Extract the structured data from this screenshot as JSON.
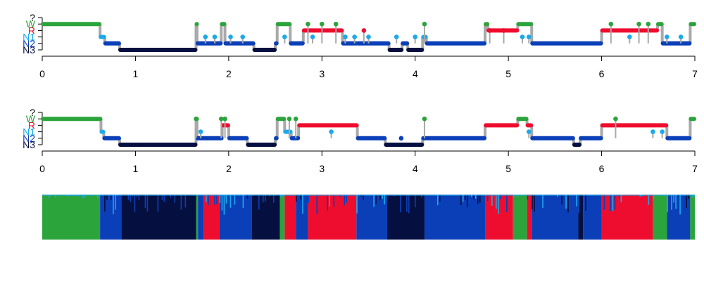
{
  "chart_data": [
    {
      "type": "scatter",
      "title": "",
      "xlabel": "",
      "ylabel": "",
      "xlim": [
        0,
        7
      ],
      "x_ticks": [
        "0",
        "1",
        "2",
        "3",
        "4",
        "5",
        "6",
        "7"
      ],
      "stage_order": [
        "?",
        "W",
        "R",
        "N1",
        "N2",
        "N3"
      ],
      "stage_colors": {
        "?": "#2ca43c",
        "W": "#2ca43c",
        "R": "#ee0d2f",
        "N1": "#1ca9ea",
        "N2": "#0a3fb8",
        "N3": "#061040"
      },
      "label_colors": {
        "?": "#000000",
        "W": "#2ca43c",
        "R": "#ee0d2f",
        "N1": "#1ca9ea",
        "N2": "#0a3fb8",
        "N3": "#061040"
      },
      "segments": [
        [
          "W",
          0,
          0.62
        ],
        [
          "N1",
          0.62,
          0.67
        ],
        [
          "N2",
          0.67,
          0.83
        ],
        [
          "N3",
          0.83,
          1.65
        ],
        [
          "W",
          1.65,
          1.66
        ],
        [
          "N2",
          1.66,
          1.92
        ],
        [
          "W",
          1.92,
          1.96
        ],
        [
          "N2",
          1.96,
          2.27
        ],
        [
          "N3",
          2.27,
          2.5
        ],
        [
          "N2",
          2.5,
          2.52
        ],
        [
          "W",
          2.52,
          2.66
        ],
        [
          "N2",
          2.66,
          2.8
        ],
        [
          "R",
          2.8,
          3.22
        ],
        [
          "N2",
          3.22,
          3.38
        ],
        [
          "N2",
          3.38,
          3.72
        ],
        [
          "N3",
          3.72,
          3.86
        ],
        [
          "N2",
          3.86,
          3.92
        ],
        [
          "N3",
          3.92,
          4.08
        ],
        [
          "N1",
          4.08,
          4.12
        ],
        [
          "N2",
          4.12,
          4.75
        ],
        [
          "W",
          4.75,
          4.78
        ],
        [
          "R",
          4.78,
          5.1
        ],
        [
          "W",
          5.1,
          5.25
        ],
        [
          "N2",
          5.25,
          6
        ],
        [
          "R",
          6,
          6.6
        ],
        [
          "W",
          6.6,
          6.65
        ],
        [
          "N2",
          6.65,
          6.95
        ],
        [
          "W",
          6.95,
          7
        ]
      ],
      "scattered_points": [
        [
          "N1",
          1.75
        ],
        [
          "N1",
          1.85
        ],
        [
          "N1",
          2.02
        ],
        [
          "N1",
          2.15
        ],
        [
          "N1",
          2.6
        ],
        [
          "N1",
          2.9
        ],
        [
          "W",
          2.85
        ],
        [
          "W",
          3.0
        ],
        [
          "W",
          3.15
        ],
        [
          "N1",
          3.25
        ],
        [
          "N1",
          3.35
        ],
        [
          "R",
          3.45
        ],
        [
          "N1",
          3.5
        ],
        [
          "N1",
          3.8
        ],
        [
          "N1",
          4.0
        ],
        [
          "W",
          4.1
        ],
        [
          "R",
          4.8
        ],
        [
          "R",
          4.95
        ],
        [
          "N1",
          5.15
        ],
        [
          "N1",
          5.22
        ],
        [
          "W",
          6.1
        ],
        [
          "N1",
          6.3
        ],
        [
          "W",
          6.4
        ],
        [
          "W",
          6.5
        ],
        [
          "N1",
          6.7
        ],
        [
          "N1",
          6.85
        ]
      ]
    },
    {
      "type": "scatter",
      "title": "",
      "xlabel": "",
      "ylabel": "",
      "xlim": [
        0,
        7
      ],
      "x_ticks": [
        "0",
        "1",
        "2",
        "3",
        "4",
        "5",
        "6",
        "7"
      ],
      "stage_order": [
        "?",
        "W",
        "R",
        "N1",
        "N2",
        "N3"
      ],
      "stage_colors": {
        "?": "#2ca43c",
        "W": "#2ca43c",
        "R": "#ee0d2f",
        "N1": "#1ca9ea",
        "N2": "#0a3fb8",
        "N3": "#061040"
      },
      "label_colors": {
        "?": "#000000",
        "W": "#2ca43c",
        "R": "#ee0d2f",
        "N1": "#1ca9ea",
        "N2": "#0a3fb8",
        "N3": "#061040"
      },
      "segments": [
        [
          "W",
          0,
          0.63
        ],
        [
          "N1",
          0.63,
          0.66
        ],
        [
          "N2",
          0.66,
          0.83
        ],
        [
          "N3",
          0.83,
          1.65
        ],
        [
          "W",
          1.65,
          1.66
        ],
        [
          "N2",
          1.66,
          1.93
        ],
        [
          "R",
          1.93,
          2.0
        ],
        [
          "N2",
          2.0,
          2.2
        ],
        [
          "N3",
          2.2,
          2.5
        ],
        [
          "N2",
          2.5,
          2.52
        ],
        [
          "W",
          2.52,
          2.6
        ],
        [
          "N1",
          2.6,
          2.67
        ],
        [
          "N2",
          2.67,
          2.75
        ],
        [
          "R",
          2.75,
          3.38
        ],
        [
          "N2",
          3.38,
          3.68
        ],
        [
          "N3",
          3.68,
          4.08
        ],
        [
          "N2",
          4.08,
          4.12
        ],
        [
          "N2",
          4.12,
          4.75
        ],
        [
          "R",
          4.75,
          5.1
        ],
        [
          "W",
          5.1,
          5.2
        ],
        [
          "R",
          5.2,
          5.25
        ],
        [
          "N2",
          5.25,
          5.7
        ],
        [
          "N3",
          5.7,
          5.77
        ],
        [
          "N2",
          5.77,
          6.0
        ],
        [
          "R",
          6.0,
          6.6
        ],
        [
          "R",
          6.6,
          6.7
        ],
        [
          "N2",
          6.7,
          6.95
        ],
        [
          "W",
          6.95,
          7
        ]
      ],
      "scattered_points": [
        [
          "W",
          1.65
        ],
        [
          "N1",
          1.7
        ],
        [
          "W",
          1.92
        ],
        [
          "W",
          1.96
        ],
        [
          "N1",
          2.65
        ],
        [
          "W",
          2.65
        ],
        [
          "W",
          2.72
        ],
        [
          "N1",
          3.1
        ],
        [
          "N2",
          3.85
        ],
        [
          "W",
          4.1
        ],
        [
          "N1",
          5.22
        ],
        [
          "W",
          6.15
        ],
        [
          "N1",
          6.55
        ],
        [
          "N1",
          6.65
        ]
      ]
    },
    {
      "type": "area",
      "title": "",
      "xlabel": "",
      "ylabel": "",
      "xlim": [
        0,
        7
      ],
      "description_series_order_bottom_to_top": [
        "N3",
        "N2",
        "N1",
        "R",
        "W"
      ],
      "stage_colors": {
        "W": "#2ca43c",
        "R": "#ee0d2f",
        "N1": "#1ca9ea",
        "N2": "#0a3fb8",
        "N3": "#061040"
      },
      "dominant_stage_segments": [
        [
          "W",
          0,
          0.62
        ],
        [
          "N2",
          0.62,
          0.85
        ],
        [
          "N3",
          0.85,
          1.65
        ],
        [
          "W",
          1.65,
          1.67
        ],
        [
          "N2",
          1.67,
          1.73
        ],
        [
          "R",
          1.73,
          1.9
        ],
        [
          "N2",
          1.9,
          2.25
        ],
        [
          "N3",
          2.25,
          2.55
        ],
        [
          "W",
          2.55,
          2.6
        ],
        [
          "R",
          2.6,
          2.72
        ],
        [
          "N2",
          2.72,
          2.85
        ],
        [
          "R",
          2.85,
          3.37
        ],
        [
          "N2",
          3.37,
          3.7
        ],
        [
          "N3",
          3.7,
          4.1
        ],
        [
          "N2",
          4.1,
          4.75
        ],
        [
          "R",
          4.75,
          5.05
        ],
        [
          "W",
          5.05,
          5.2
        ],
        [
          "R",
          5.2,
          5.25
        ],
        [
          "N2",
          5.25,
          5.75
        ],
        [
          "N3",
          5.75,
          5.8
        ],
        [
          "N2",
          5.8,
          6.0
        ],
        [
          "R",
          6.0,
          6.55
        ],
        [
          "W",
          6.55,
          6.7
        ],
        [
          "N2",
          6.7,
          6.95
        ],
        [
          "W",
          6.95,
          7
        ]
      ]
    }
  ]
}
